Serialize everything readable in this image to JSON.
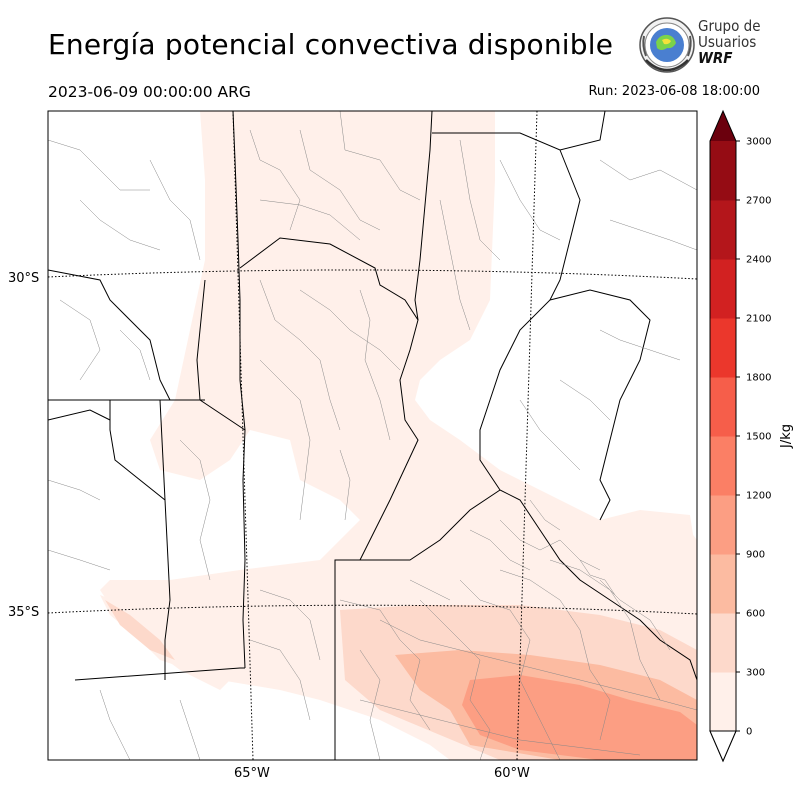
{
  "header": {
    "title": "Energía potencial convectiva disponible",
    "valid_time": "2023-06-09 00:00:00 ARG",
    "run_label": "Run: 2023-06-08 18:00:00"
  },
  "logo": {
    "line1": "Grupo de",
    "line2": "Usuarios",
    "line3": "WRF"
  },
  "map": {
    "variable": "CAPE",
    "lat_labels": [
      "30°S",
      "35°S"
    ],
    "lon_labels": [
      "65°W",
      "60°W"
    ],
    "border_color": "#000000",
    "department_color": "#888888"
  },
  "colorbar": {
    "unit": "J/kg",
    "ticks": [
      "0",
      "300",
      "600",
      "900",
      "1200",
      "1500",
      "1800",
      "2100",
      "2400",
      "2700",
      "3000"
    ],
    "colors": [
      "#fff0ea",
      "#fdd9cb",
      "#fcbba1",
      "#fc9e83",
      "#fb7f65",
      "#f65e4a",
      "#eb372c",
      "#d22121",
      "#b4161b",
      "#950c14",
      "#6b000d"
    ],
    "extend": "max"
  }
}
